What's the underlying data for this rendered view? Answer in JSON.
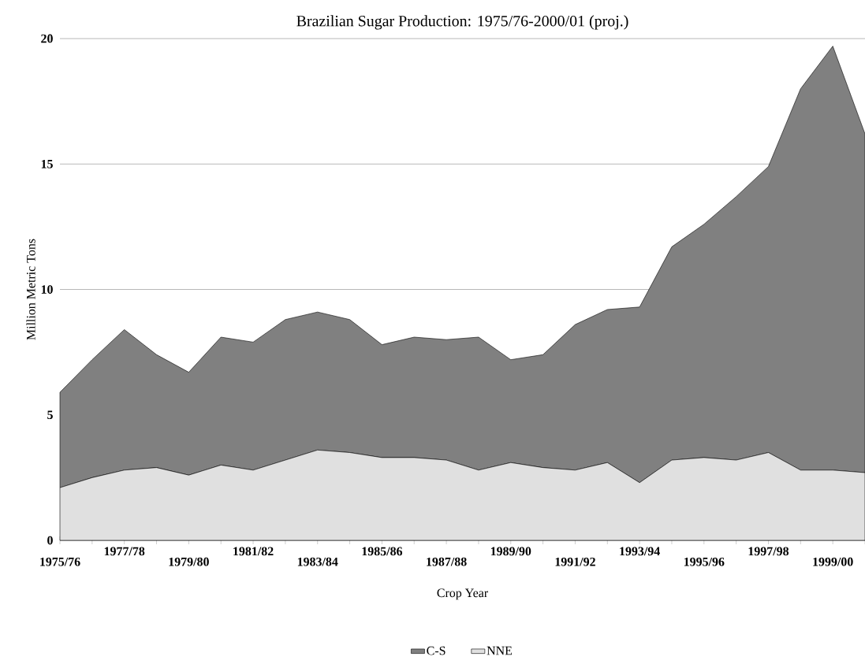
{
  "chart_data": {
    "type": "area",
    "stacked": true,
    "title": "Brazilian Sugar Production: 1975/76-2000/01 (proj.)",
    "xlabel": "Crop Year",
    "ylabel": "Million Metric Tons",
    "categories": [
      "1975/76",
      null,
      "1977/78",
      null,
      "1979/80",
      null,
      "1981/82",
      null,
      "1983/84",
      null,
      "1985/86",
      null,
      "1987/88",
      null,
      "1989/90",
      null,
      "1991/92",
      null,
      "1993/94",
      null,
      "1995/96",
      null,
      "1997/98",
      null,
      "1999/00",
      null
    ],
    "series": [
      {
        "name": "NNE",
        "color": "#e0e0e0",
        "values": [
          2.1,
          2.5,
          2.8,
          2.9,
          2.6,
          3.0,
          2.8,
          3.2,
          3.6,
          3.5,
          3.3,
          3.3,
          3.2,
          2.8,
          3.1,
          2.9,
          2.8,
          3.1,
          2.3,
          3.2,
          3.3,
          3.2,
          3.5,
          2.8,
          2.8,
          2.7
        ]
      },
      {
        "name": "C-S",
        "color": "#808080",
        "values": [
          3.8,
          4.7,
          5.6,
          4.5,
          4.1,
          5.1,
          5.1,
          5.6,
          5.5,
          5.3,
          4.5,
          4.8,
          4.8,
          5.3,
          4.1,
          4.5,
          5.8,
          6.1,
          7.0,
          8.5,
          9.3,
          10.5,
          11.4,
          15.2,
          16.9,
          13.5
        ]
      }
    ],
    "ylim": [
      0,
      20
    ],
    "yticks": [
      0,
      5,
      10,
      15,
      20
    ],
    "grid": "y",
    "legend": "bottom"
  }
}
